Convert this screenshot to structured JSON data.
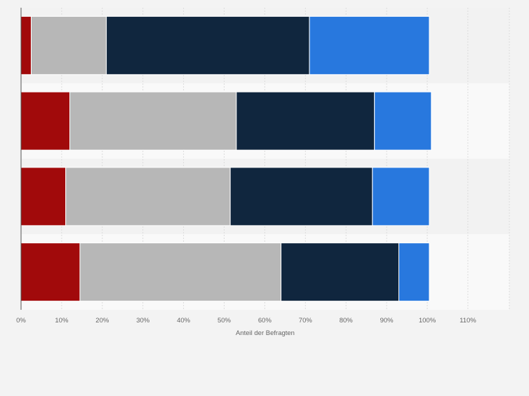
{
  "chart_data": {
    "type": "bar",
    "orientation": "horizontal",
    "stacked": true,
    "categories": [
      "",
      "",
      "",
      ""
    ],
    "series": [
      {
        "color": "#a10a0b",
        "values": [
          2.5,
          12,
          11,
          14.5
        ]
      },
      {
        "color": "#b7b7b7",
        "values": [
          18.5,
          41,
          40.5,
          49.5
        ]
      },
      {
        "color": "#10263e",
        "values": [
          50,
          34,
          35,
          29
        ]
      },
      {
        "color": "#2878de",
        "values": [
          29.5,
          14,
          14,
          7.5
        ]
      }
    ],
    "x_ticks": [
      "0%",
      "10%",
      "20%",
      "30%",
      "40%",
      "50%",
      "60%",
      "70%",
      "80%",
      "90%",
      "100%",
      "110%"
    ],
    "xlabel": "Anteil der Befragten",
    "xlim": [
      0,
      120
    ],
    "grid": true,
    "legend": "none"
  }
}
